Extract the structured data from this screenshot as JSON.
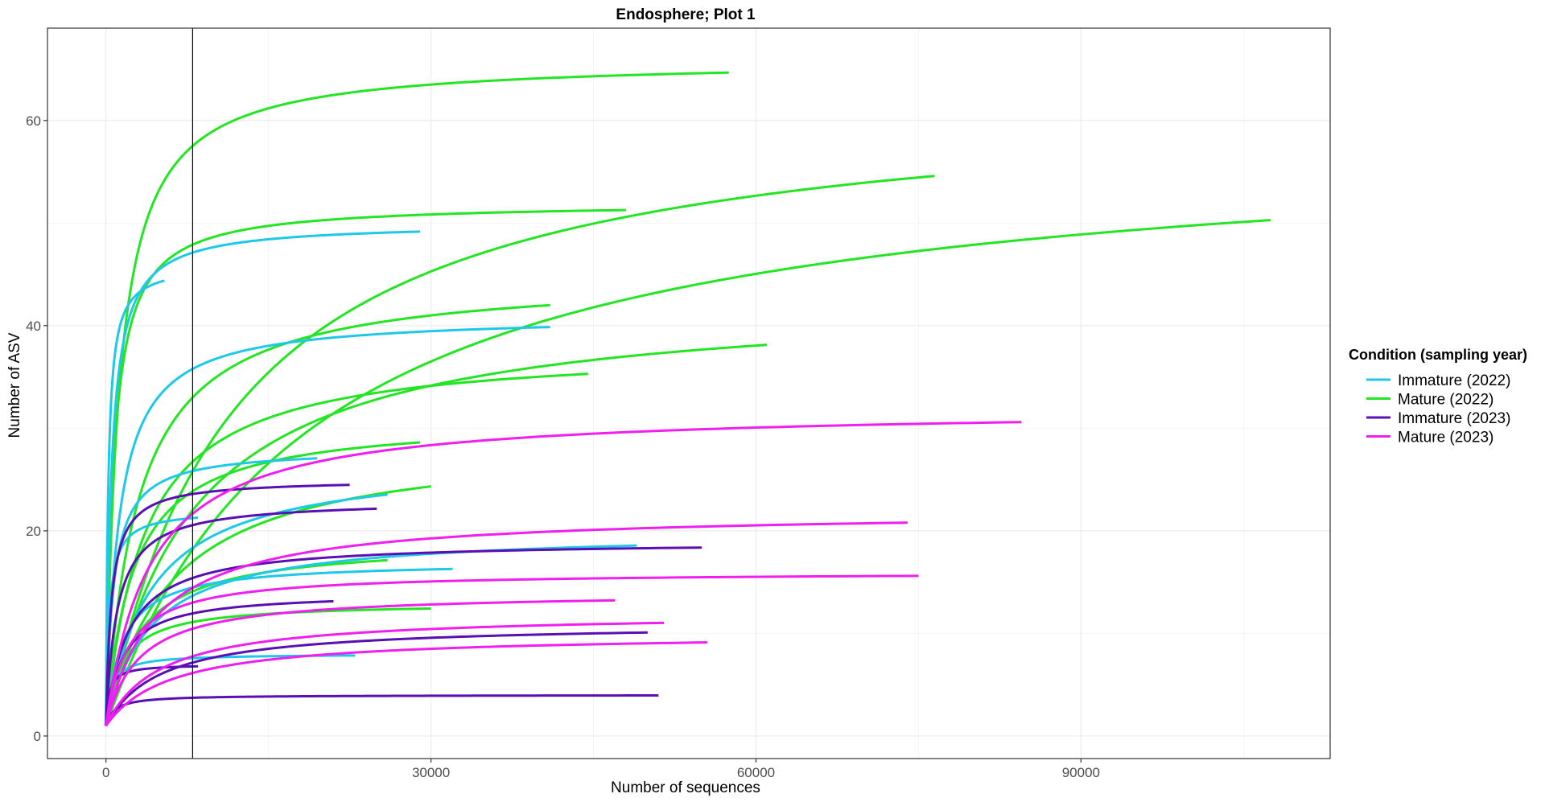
{
  "chart_data": {
    "type": "line",
    "title": "Endosphere; Plot 1",
    "xlabel": "Number of sequences",
    "ylabel": "Number of ASV",
    "xlim": [
      -5400,
      113000
    ],
    "ylim": [
      -2.2,
      69
    ],
    "x_ticks": [
      0,
      30000,
      60000,
      90000
    ],
    "x_tick_labels": [
      "0",
      "30000",
      "60000",
      "90000"
    ],
    "y_ticks": [
      0,
      20,
      40,
      60
    ],
    "y_tick_labels": [
      "0",
      "20",
      "40",
      "60"
    ],
    "grid": true,
    "vline_x": 8000,
    "legend": {
      "title": "Condition (sampling year)",
      "position": "right",
      "items": [
        {
          "label": "Immature (2022)",
          "color": "#1EC8E8"
        },
        {
          "label": "Mature (2022)",
          "color": "#22E622"
        },
        {
          "label": "Immature (2023)",
          "color": "#5A0FB4"
        },
        {
          "label": "Mature (2023)",
          "color": "#F01EF0"
        }
      ]
    },
    "series": [
      {
        "group": 1,
        "max_x": 57500,
        "asymptote": 66,
        "k": 1200
      },
      {
        "group": 1,
        "max_x": 76500,
        "asymptote": 63,
        "k": 12000
      },
      {
        "group": 1,
        "max_x": 107500,
        "asymptote": 59,
        "k": 19000
      },
      {
        "group": 1,
        "max_x": 48000,
        "asymptote": 52,
        "k": 700
      },
      {
        "group": 1,
        "max_x": 41000,
        "asymptote": 45,
        "k": 3000
      },
      {
        "group": 1,
        "max_x": 61000,
        "asymptote": 43,
        "k": 8000
      },
      {
        "group": 1,
        "max_x": 44500,
        "asymptote": 38,
        "k": 3500
      },
      {
        "group": 1,
        "max_x": 29000,
        "asymptote": 31,
        "k": 2500
      },
      {
        "group": 1,
        "max_x": 30000,
        "asymptote": 29,
        "k": 6000
      },
      {
        "group": 1,
        "max_x": 26000,
        "asymptote": 19,
        "k": 3000
      },
      {
        "group": 1,
        "max_x": 30000,
        "asymptote": 13,
        "k": 1500
      },
      {
        "group": 0,
        "max_x": 29000,
        "asymptote": 50,
        "k": 500
      },
      {
        "group": 0,
        "max_x": 5400,
        "asymptote": 46,
        "k": 200
      },
      {
        "group": 0,
        "max_x": 41000,
        "asymptote": 41,
        "k": 1200
      },
      {
        "group": 0,
        "max_x": 19500,
        "asymptote": 28,
        "k": 700
      },
      {
        "group": 0,
        "max_x": 26000,
        "asymptote": 27,
        "k": 4000
      },
      {
        "group": 0,
        "max_x": 8500,
        "asymptote": 22,
        "k": 300
      },
      {
        "group": 0,
        "max_x": 49000,
        "asymptote": 20,
        "k": 4000
      },
      {
        "group": 0,
        "max_x": 32000,
        "asymptote": 17,
        "k": 1500
      },
      {
        "group": 0,
        "max_x": 23000,
        "asymptote": 8,
        "k": 500
      },
      {
        "group": 2,
        "max_x": 22500,
        "asymptote": 25,
        "k": 500
      },
      {
        "group": 2,
        "max_x": 25000,
        "asymptote": 23,
        "k": 1000
      },
      {
        "group": 2,
        "max_x": 55000,
        "asymptote": 19,
        "k": 2000
      },
      {
        "group": 2,
        "max_x": 21000,
        "asymptote": 14,
        "k": 1500
      },
      {
        "group": 2,
        "max_x": 50000,
        "asymptote": 11,
        "k": 5000
      },
      {
        "group": 2,
        "max_x": 8500,
        "asymptote": 7,
        "k": 300
      },
      {
        "group": 2,
        "max_x": 51000,
        "asymptote": 4,
        "k": 800
      },
      {
        "group": 3,
        "max_x": 84500,
        "asymptote": 32,
        "k": 4000
      },
      {
        "group": 3,
        "max_x": 74000,
        "asymptote": 22,
        "k": 4500
      },
      {
        "group": 3,
        "max_x": 75000,
        "asymptote": 16,
        "k": 2000
      },
      {
        "group": 3,
        "max_x": 47000,
        "asymptote": 14,
        "k": 3000
      },
      {
        "group": 3,
        "max_x": 51500,
        "asymptote": 12,
        "k": 5000
      },
      {
        "group": 3,
        "max_x": 55500,
        "asymptote": 10,
        "k": 6000
      }
    ]
  }
}
